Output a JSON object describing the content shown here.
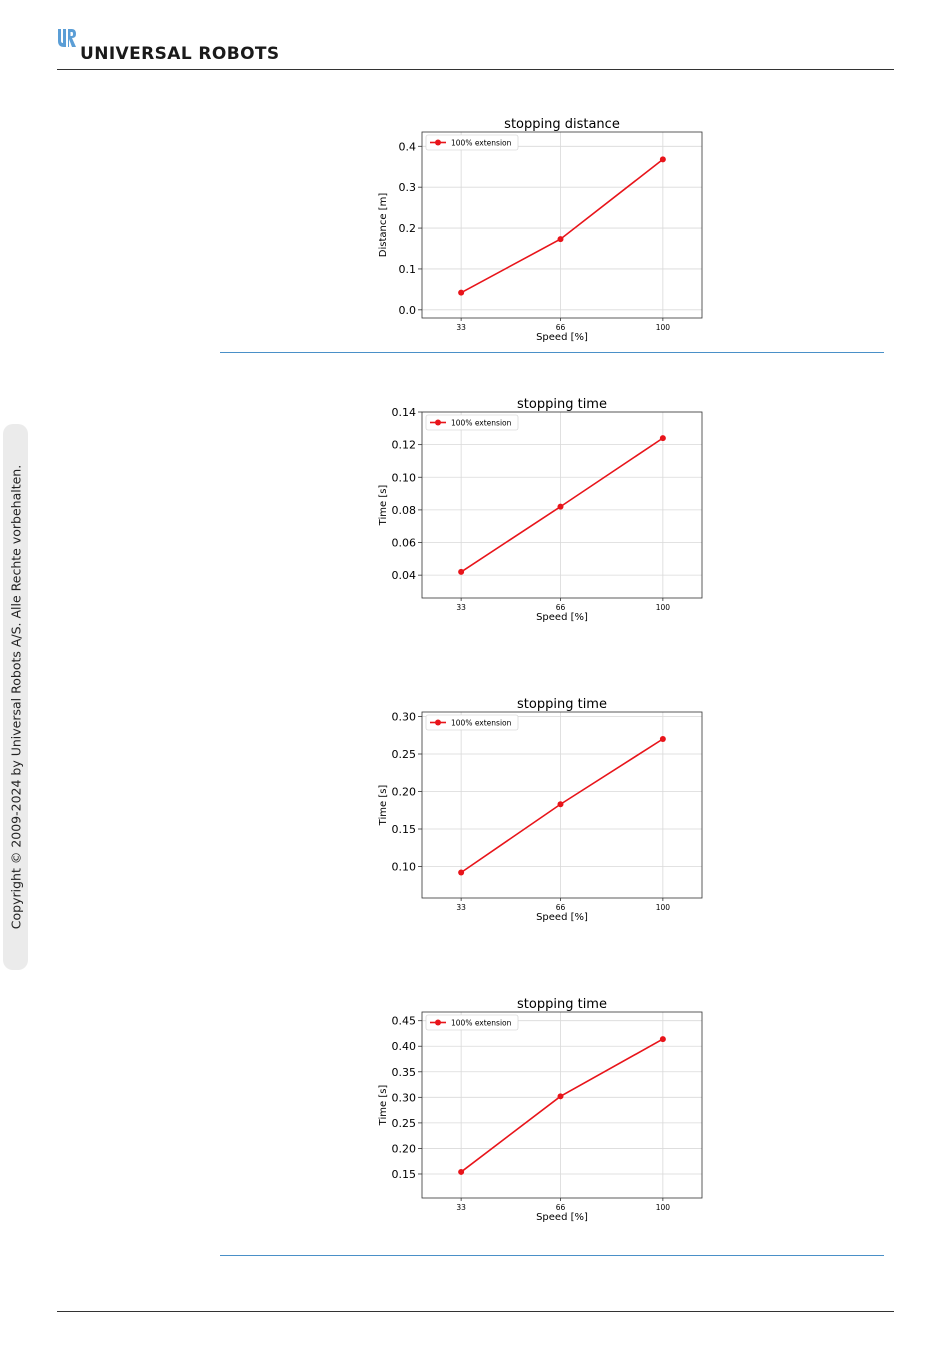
{
  "header": {
    "logo_text": "UNIVERSAL ROBOTS",
    "logo_icon": "ur-logo-icon"
  },
  "sidebar": {
    "copyright": "Copyright © 2009-2024 by Universal Robots A/S. Alle Rechte vorbehalten."
  },
  "colors": {
    "line": "#e8141a",
    "separator": "#4a90c8",
    "logo_blue": "#5b9ed6"
  },
  "chart_data": [
    {
      "type": "line",
      "title": "stopping distance",
      "xlabel": "Speed [%]",
      "ylabel": "Distance [m]",
      "x": [
        33,
        66,
        100
      ],
      "x_tick_labels": [
        "33",
        "66",
        "100"
      ],
      "series": [
        {
          "name": "100% extension",
          "values": [
            0.042,
            0.173,
            0.368
          ]
        }
      ],
      "yticks": [
        0.0,
        0.1,
        0.2,
        0.3,
        0.4
      ],
      "ytick_labels": [
        "0.0",
        "0.1",
        "0.2",
        "0.3",
        "0.4"
      ],
      "ylim": [
        -0.02,
        0.435
      ],
      "xlim": [
        20,
        113
      ],
      "grid": true,
      "legend": "upper-left"
    },
    {
      "type": "line",
      "title": "stopping time",
      "xlabel": "Speed [%]",
      "ylabel": "Time [s]",
      "x": [
        33,
        66,
        100
      ],
      "x_tick_labels": [
        "33",
        "66",
        "100"
      ],
      "series": [
        {
          "name": "100% extension",
          "values": [
            0.042,
            0.082,
            0.124
          ]
        }
      ],
      "yticks": [
        0.04,
        0.06,
        0.08,
        0.1,
        0.12,
        0.14
      ],
      "ytick_labels": [
        "0.04",
        "0.06",
        "0.08",
        "0.10",
        "0.12",
        "0.14"
      ],
      "ylim": [
        0.026,
        0.14
      ],
      "xlim": [
        20,
        113
      ],
      "grid": true,
      "legend": "upper-left"
    },
    {
      "type": "line",
      "title": "stopping time",
      "xlabel": "Speed [%]",
      "ylabel": "Time [s]",
      "x": [
        33,
        66,
        100
      ],
      "x_tick_labels": [
        "33",
        "66",
        "100"
      ],
      "series": [
        {
          "name": "100% extension",
          "values": [
            0.092,
            0.183,
            0.27
          ]
        }
      ],
      "yticks": [
        0.1,
        0.15,
        0.2,
        0.25,
        0.3
      ],
      "ytick_labels": [
        "0.10",
        "0.15",
        "0.20",
        "0.25",
        "0.30"
      ],
      "ylim": [
        0.058,
        0.306
      ],
      "xlim": [
        20,
        113
      ],
      "grid": true,
      "legend": "upper-left"
    },
    {
      "type": "line",
      "title": "stopping time",
      "xlabel": "Speed [%]",
      "ylabel": "Time [s]",
      "x": [
        33,
        66,
        100
      ],
      "x_tick_labels": [
        "33",
        "66",
        "100"
      ],
      "series": [
        {
          "name": "100% extension",
          "values": [
            0.154,
            0.302,
            0.414
          ]
        }
      ],
      "yticks": [
        0.15,
        0.2,
        0.25,
        0.3,
        0.35,
        0.4,
        0.45
      ],
      "ytick_labels": [
        "0.15",
        "0.20",
        "0.25",
        "0.30",
        "0.35",
        "0.40",
        "0.45"
      ],
      "ylim": [
        0.103,
        0.467
      ],
      "xlim": [
        20,
        113
      ],
      "grid": true,
      "legend": "upper-left"
    }
  ]
}
